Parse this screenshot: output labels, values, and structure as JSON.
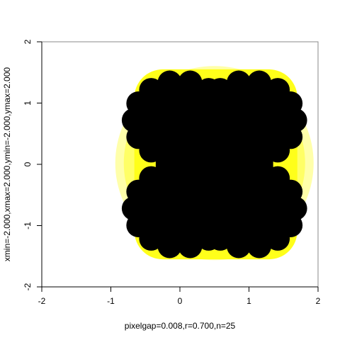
{
  "chart_data": {
    "type": "heatmap",
    "title": "",
    "xlabel": "pixelgap=0.008,r=0.700,n=25",
    "ylabel": "xmin=-2.000,xmax=2.000,ymin=-2.000,ymax=2.000",
    "xlim": [
      -2,
      2
    ],
    "ylim": [
      -2,
      2
    ],
    "x_ticks": [
      -2,
      -1,
      0,
      1,
      2
    ],
    "y_ticks": [
      -2,
      -1,
      0,
      1,
      2
    ],
    "x_tick_labels": [
      "-2",
      "-1",
      "0",
      "1",
      "2"
    ],
    "y_tick_labels": [
      "-2",
      "-1",
      "0",
      "1",
      "2"
    ],
    "grid": false,
    "legend": "none",
    "colors": {
      "set": "#000000",
      "level_inner": "#ffff1a",
      "level_mid": "#ffff66",
      "level_outer": "#ffffaa",
      "background": "#ffffff",
      "frame": "#888888"
    }
  }
}
